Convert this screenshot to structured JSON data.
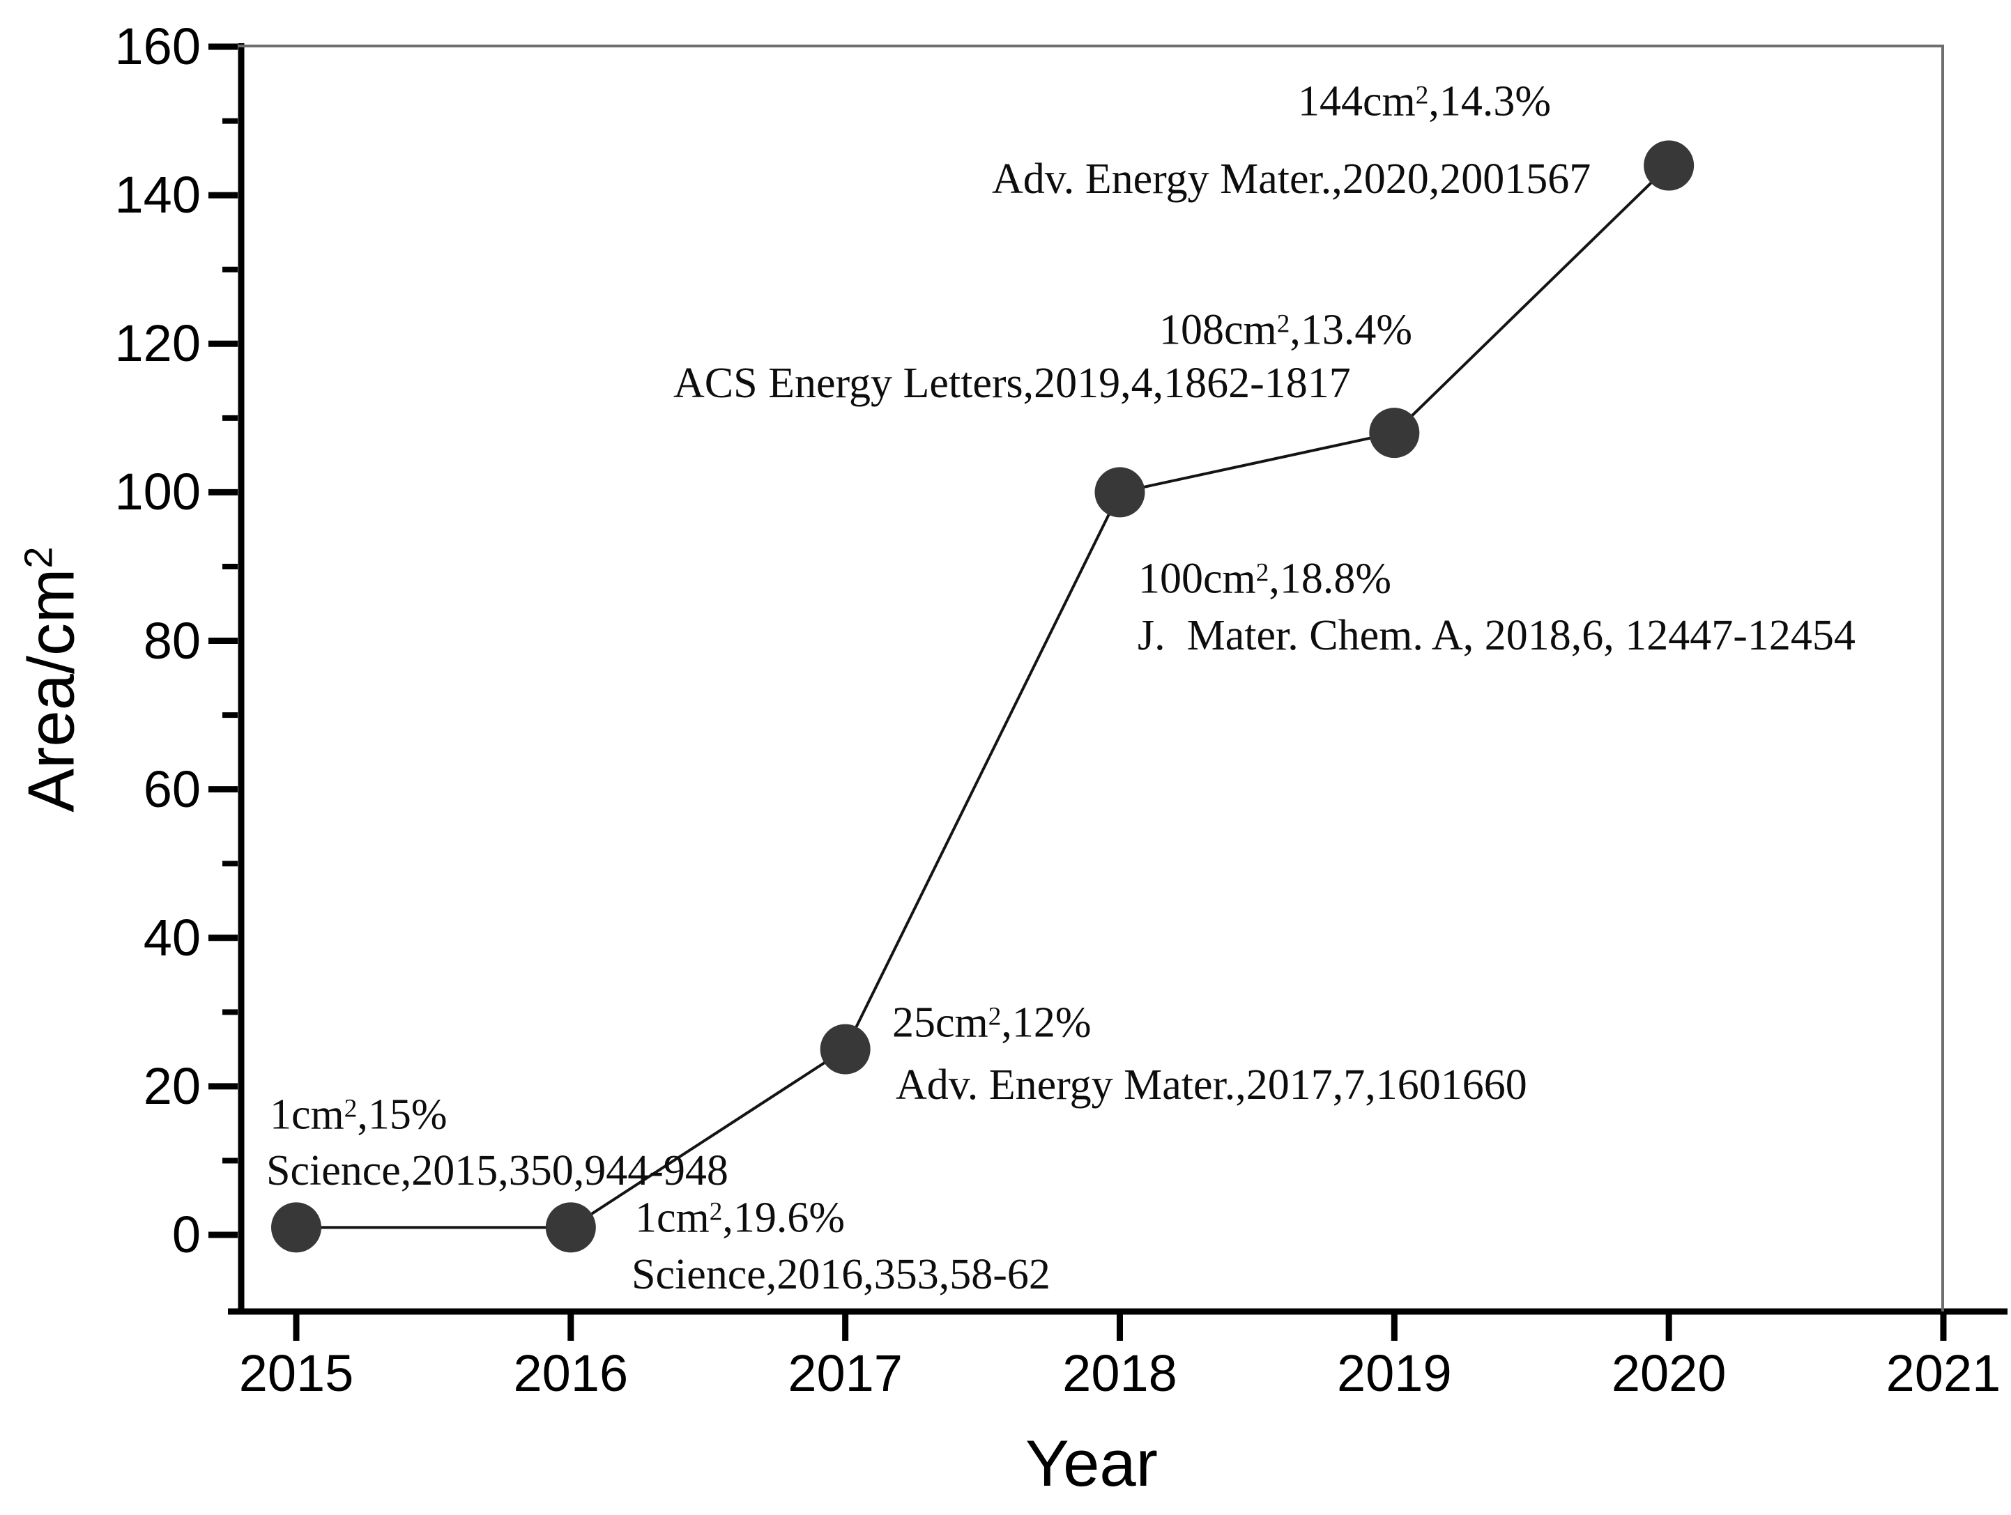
{
  "figure": {
    "background": "#ffffff",
    "text_color": "#000000",
    "primary_spine_color": "#000000",
    "secondary_spine_color": "#6e6e6e",
    "marker_color": "#383838",
    "line_color": "#141414"
  },
  "chart_data": {
    "type": "line",
    "title": "",
    "xlabel": "Year",
    "ylabel_base": "Area/cm",
    "ylabel_sup": "2",
    "x": [
      2015,
      2016,
      2017,
      2018,
      2019,
      2020
    ],
    "values": [
      1,
      1,
      25,
      100,
      108,
      144
    ],
    "efficiencies_pct": [
      15,
      19.6,
      12,
      18.8,
      13.4,
      14.3
    ],
    "xlim": [
      2014.8,
      2021.2
    ],
    "ylim": [
      -10.3,
      160
    ],
    "x_tick_labels": [
      "2015",
      "2016",
      "2017",
      "2018",
      "2019",
      "2020",
      "2021"
    ],
    "y_tick_labels": [
      "0",
      "20",
      "40",
      "60",
      "80",
      "100",
      "120",
      "140",
      "160"
    ],
    "y_major_step": 20,
    "y_minor_step": 10,
    "grid": "off",
    "legend": "none",
    "marker": "filled-circle",
    "annotations": [
      {
        "year": 2015,
        "area_label": [
          {
            "t": "1cm"
          },
          {
            "t": "2",
            "sup": true
          },
          {
            "t": ",15%"
          }
        ],
        "ref": [
          {
            "t": "Science,2015,350,944-948"
          }
        ]
      },
      {
        "year": 2016,
        "area_label": [
          {
            "t": "1cm"
          },
          {
            "t": "2",
            "sup": true
          },
          {
            "t": ",19.6%"
          }
        ],
        "ref": [
          {
            "t": "Science,2016,353,58-62"
          }
        ]
      },
      {
        "year": 2017,
        "area_label": [
          {
            "t": "25cm"
          },
          {
            "t": "2",
            "sup": true
          },
          {
            "t": ",12%"
          }
        ],
        "ref": [
          {
            "t": "Adv. Energy Mater.,2017,7,1601660"
          }
        ]
      },
      {
        "year": 2018,
        "area_label": [
          {
            "t": "100cm"
          },
          {
            "t": "2",
            "sup": true
          },
          {
            "t": ",18.8%"
          }
        ],
        "ref": [
          {
            "t": "J.  Mater. Chem. A, 2018,6, 12447-12454"
          }
        ]
      },
      {
        "year": 2019,
        "area_label": [
          {
            "t": "108cm"
          },
          {
            "t": "2",
            "sup": true
          },
          {
            "t": ",13.4%"
          }
        ],
        "ref": [
          {
            "t": "ACS Energy Letters,2019,4,1862-1817"
          }
        ]
      },
      {
        "year": 2020,
        "area_label": [
          {
            "t": "144cm"
          },
          {
            "t": "2",
            "sup": true
          },
          {
            "t": ",14.3%"
          }
        ],
        "ref": [
          {
            "t": "Adv. Energy Mater.,2020,2001567"
          }
        ]
      }
    ]
  }
}
